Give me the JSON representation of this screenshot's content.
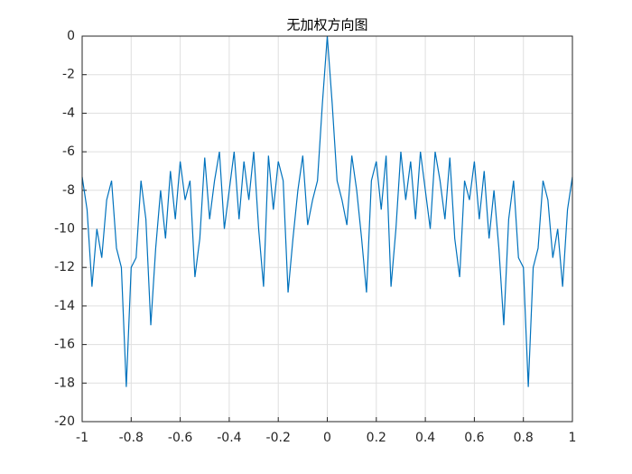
{
  "chart_data": {
    "type": "line",
    "title": "无加权方向图",
    "x": [
      -1,
      -0.98,
      -0.96,
      -0.94,
      -0.92,
      -0.9,
      -0.88,
      -0.86,
      -0.84,
      -0.82,
      -0.8,
      -0.78,
      -0.76,
      -0.74,
      -0.72,
      -0.7,
      -0.68,
      -0.66,
      -0.64,
      -0.62,
      -0.6,
      -0.58,
      -0.56,
      -0.54,
      -0.52,
      -0.5,
      -0.48,
      -0.46,
      -0.44,
      -0.42,
      -0.4,
      -0.38,
      -0.36,
      -0.34,
      -0.32,
      -0.3,
      -0.28,
      -0.26,
      -0.24,
      -0.22,
      -0.2,
      -0.18,
      -0.16,
      -0.14,
      -0.12,
      -0.1,
      -0.08,
      -0.06,
      -0.04,
      -0.02,
      0,
      0.02,
      0.04,
      0.06,
      0.08,
      0.1,
      0.12,
      0.14,
      0.16,
      0.18,
      0.2,
      0.22,
      0.24,
      0.26,
      0.28,
      0.3,
      0.32,
      0.34,
      0.36,
      0.38,
      0.4,
      0.42,
      0.44,
      0.46,
      0.48,
      0.5,
      0.52,
      0.54,
      0.56,
      0.58,
      0.6,
      0.62,
      0.64,
      0.66,
      0.68,
      0.7,
      0.72,
      0.74,
      0.76,
      0.78,
      0.8,
      0.82,
      0.84,
      0.86,
      0.88,
      0.9,
      0.92,
      0.94,
      0.96,
      0.98,
      1
    ],
    "series": [
      {
        "name": "pattern",
        "color": "#0072bd",
        "values": [
          -7.3,
          -9.0,
          -13.0,
          -10.0,
          -11.5,
          -8.5,
          -7.5,
          -11.0,
          -12.0,
          -18.2,
          -12.0,
          -11.5,
          -7.5,
          -9.5,
          -15.0,
          -11.0,
          -8.0,
          -10.5,
          -7.0,
          -9.5,
          -6.5,
          -8.5,
          -7.5,
          -12.5,
          -10.5,
          -6.3,
          -9.5,
          -7.5,
          -6.0,
          -10.0,
          -8.0,
          -6.0,
          -9.5,
          -6.5,
          -8.5,
          -6.0,
          -10.0,
          -13.0,
          -6.2,
          -9.0,
          -6.5,
          -7.5,
          -13.3,
          -10.5,
          -8.0,
          -6.2,
          -9.8,
          -8.5,
          -7.5,
          -3.5,
          0,
          -3.5,
          -7.5,
          -8.5,
          -9.8,
          -6.2,
          -8.0,
          -10.5,
          -13.3,
          -7.5,
          -6.5,
          -9.0,
          -6.2,
          -13.0,
          -10.0,
          -6.0,
          -8.5,
          -6.5,
          -9.5,
          -6.0,
          -8.0,
          -10.0,
          -6.0,
          -7.5,
          -9.5,
          -6.3,
          -10.5,
          -12.5,
          -7.5,
          -8.5,
          -6.5,
          -9.5,
          -7.0,
          -10.5,
          -8.0,
          -11.0,
          -15.0,
          -9.5,
          -7.5,
          -11.5,
          -12.0,
          -18.2,
          -12.0,
          -11.0,
          -7.5,
          -8.5,
          -11.5,
          -10.0,
          -13.0,
          -9.0,
          -7.3
        ]
      }
    ],
    "xlim": [
      -1,
      1
    ],
    "ylim": [
      -20,
      0
    ],
    "xticks": [
      -1,
      -0.8,
      -0.6,
      -0.4,
      -0.2,
      0,
      0.2,
      0.4,
      0.6,
      0.8,
      1
    ],
    "yticks": [
      0,
      -2,
      -4,
      -6,
      -8,
      -10,
      -12,
      -14,
      -16,
      -18,
      -20
    ],
    "grid": true
  }
}
